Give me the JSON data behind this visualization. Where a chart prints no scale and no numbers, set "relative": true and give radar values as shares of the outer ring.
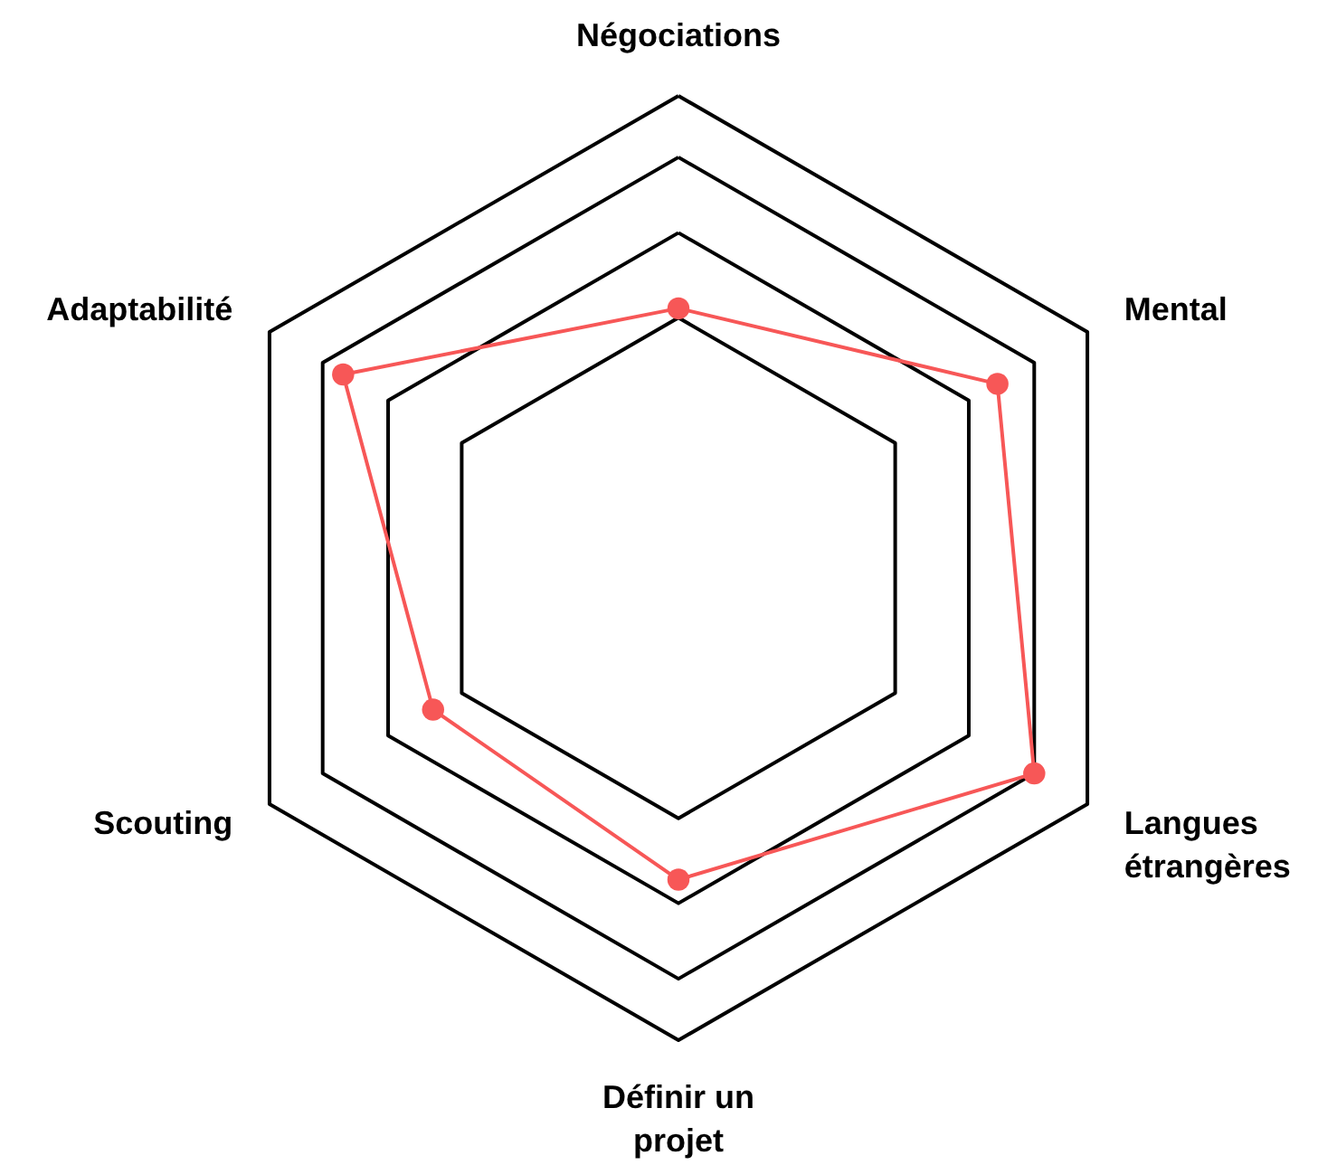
{
  "chart_data": {
    "type": "radar",
    "relative": true,
    "categories": [
      "Négociations",
      "Mental",
      "Langues étrangères",
      "Définir un projet",
      "Scouting",
      "Adaptabilité"
    ],
    "marker": "circle",
    "series": [
      {
        "color": "#f75757",
        "values": [
          0.55,
          0.78,
          0.87,
          0.66,
          0.6,
          0.82
        ]
      }
    ]
  }
}
